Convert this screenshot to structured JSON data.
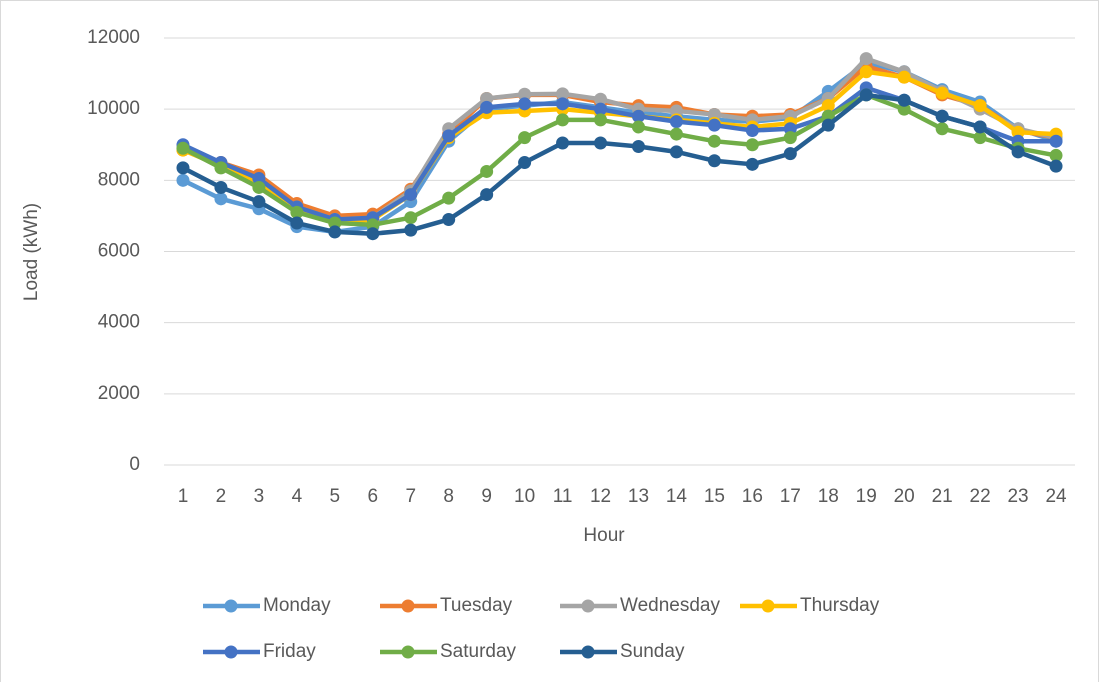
{
  "chart_data": {
    "type": "line",
    "x_label": "Hour",
    "y_label": "Load (kWh)",
    "categories": [
      "1",
      "2",
      "3",
      "4",
      "5",
      "6",
      "7",
      "8",
      "9",
      "10",
      "11",
      "12",
      "13",
      "14",
      "15",
      "16",
      "17",
      "18",
      "19",
      "20",
      "21",
      "22",
      "23",
      "24"
    ],
    "ylim": [
      0,
      12000
    ],
    "yticks": [
      0,
      2000,
      4000,
      6000,
      8000,
      10000,
      12000
    ],
    "grid": true,
    "legend": "bottom",
    "series": [
      {
        "name": "Monday",
        "color": "#5b9bd5",
        "values": [
          8000,
          7480,
          7200,
          6700,
          6550,
          6700,
          7400,
          9100,
          10000,
          10100,
          10200,
          10050,
          9900,
          9800,
          9700,
          9650,
          9750,
          10500,
          11300,
          11050,
          10550,
          10200,
          9450,
          9100
        ]
      },
      {
        "name": "Tuesday",
        "color": "#ed7d31",
        "values": [
          8850,
          8500,
          8150,
          7350,
          7000,
          7050,
          7750,
          9300,
          10300,
          10400,
          10400,
          10200,
          10100,
          10050,
          9850,
          9800,
          9850,
          10300,
          11200,
          10900,
          10400,
          10100,
          9400,
          9200
        ]
      },
      {
        "name": "Wednesday",
        "color": "#a5a5a5",
        "values": [
          8900,
          8450,
          8000,
          7250,
          6900,
          6950,
          7700,
          9450,
          10300,
          10420,
          10430,
          10280,
          10000,
          9950,
          9850,
          9700,
          9800,
          10300,
          11420,
          11050,
          10500,
          10000,
          9450,
          9200
        ]
      },
      {
        "name": "Thursday",
        "color": "#ffc000",
        "values": [
          8850,
          8400,
          7900,
          7200,
          6800,
          6900,
          7600,
          9200,
          9900,
          9950,
          10000,
          9900,
          9800,
          9700,
          9600,
          9500,
          9600,
          10100,
          11050,
          10900,
          10450,
          10100,
          9350,
          9300
        ]
      },
      {
        "name": "Friday",
        "color": "#4472c4",
        "values": [
          9000,
          8500,
          8050,
          7250,
          6900,
          6950,
          7600,
          9250,
          10050,
          10150,
          10150,
          10000,
          9800,
          9650,
          9550,
          9400,
          9450,
          9800,
          10600,
          10250,
          9800,
          9500,
          9100,
          9100
        ]
      },
      {
        "name": "Saturday",
        "color": "#70ad47",
        "values": [
          8900,
          8350,
          7800,
          7100,
          6800,
          6750,
          6950,
          7500,
          8250,
          9200,
          9700,
          9700,
          9500,
          9300,
          9100,
          9000,
          9200,
          9800,
          10400,
          10000,
          9450,
          9200,
          8900,
          8700
        ]
      },
      {
        "name": "Sunday",
        "color": "#255e91",
        "values": [
          8350,
          7800,
          7400,
          6800,
          6550,
          6500,
          6600,
          6900,
          7600,
          8500,
          9050,
          9050,
          8950,
          8800,
          8550,
          8450,
          8750,
          9550,
          10400,
          10250,
          9800,
          9500,
          8800,
          8400
        ]
      }
    ]
  }
}
